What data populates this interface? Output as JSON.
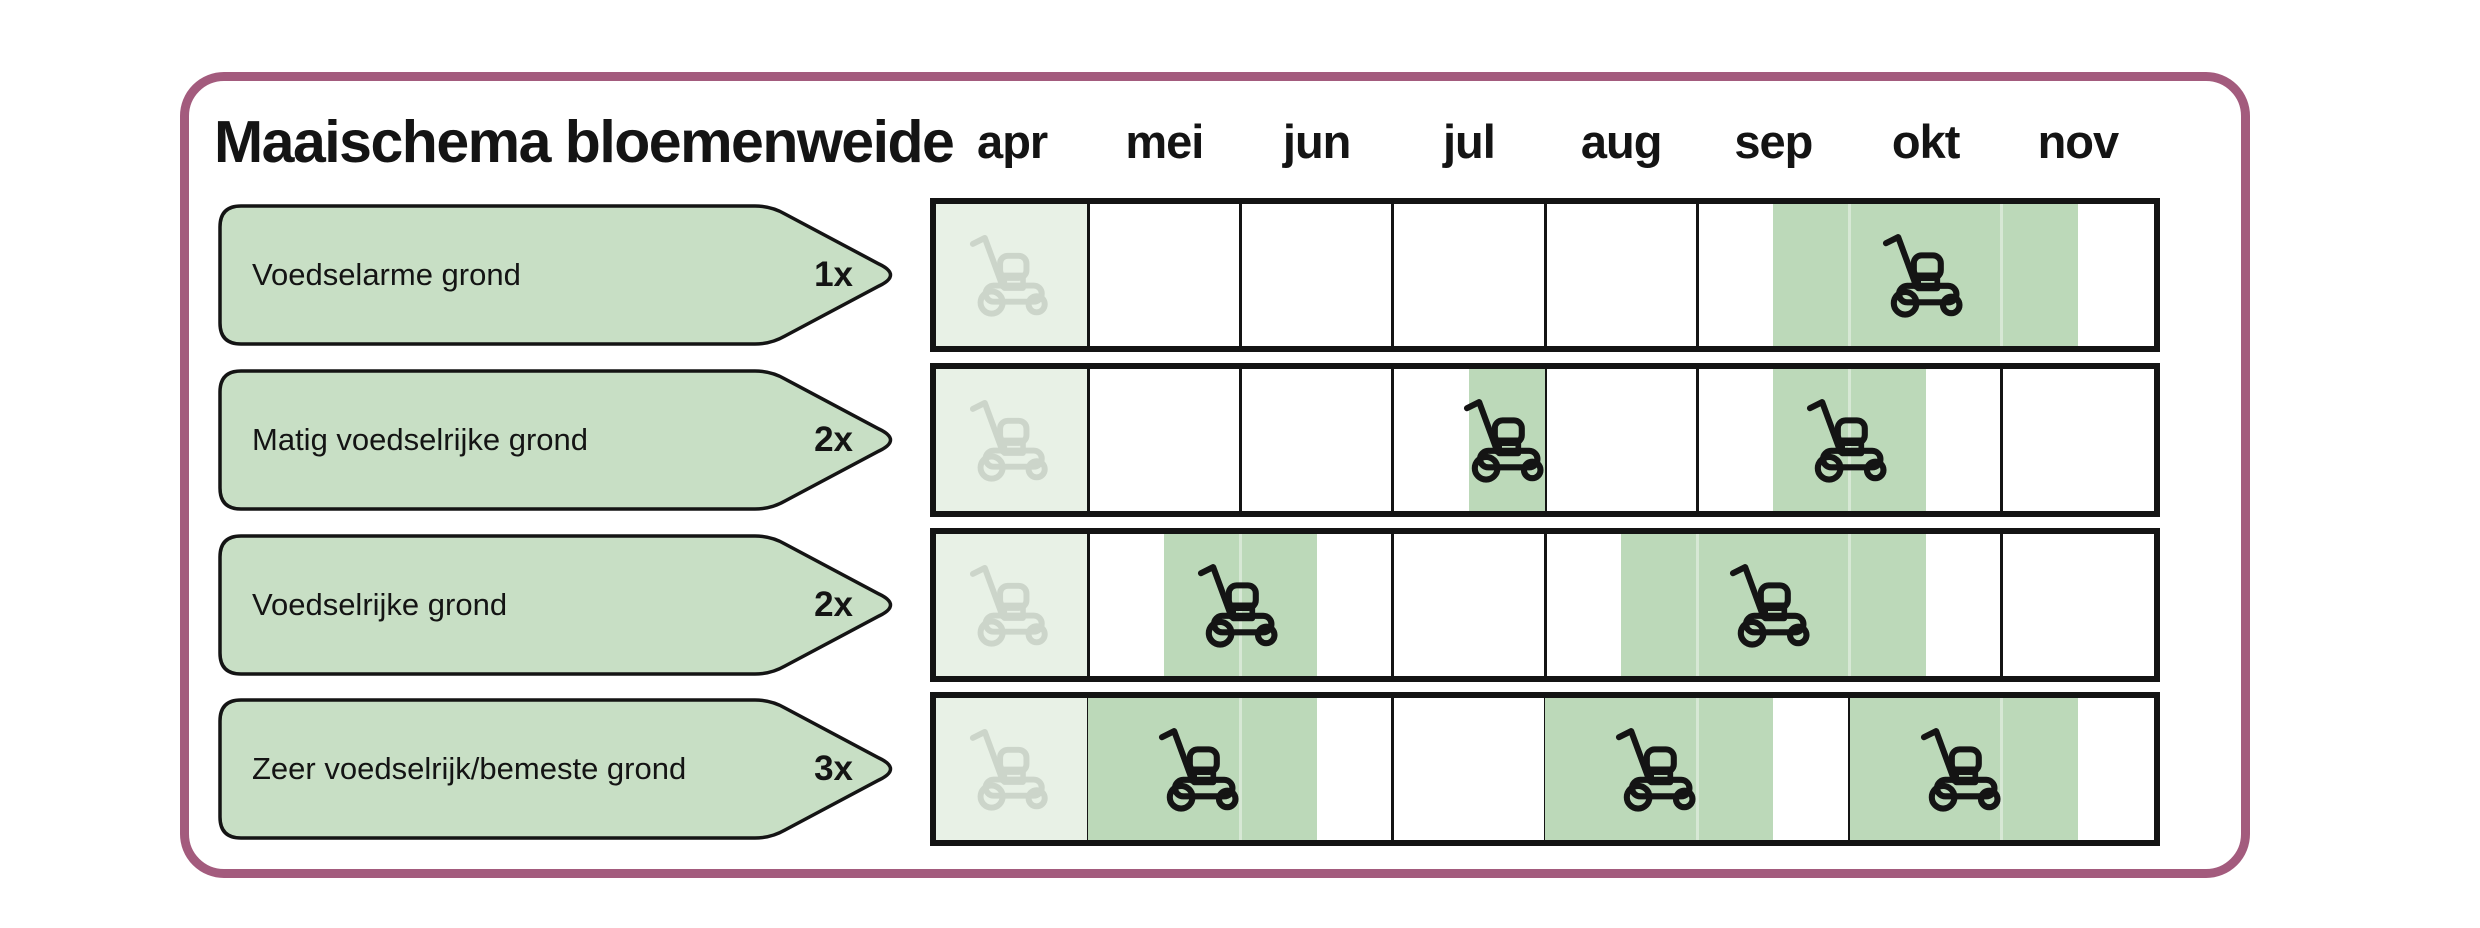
{
  "header": {
    "title": "Maaischema bloemenweide"
  },
  "months": [
    "apr",
    "mei",
    "jun",
    "jul",
    "aug",
    "sep",
    "okt",
    "nov"
  ],
  "palette": {
    "card_border": "#a35b7d",
    "banner_fill": "#c8dfc5",
    "band_fill": "#bcd9b9",
    "april_cell_fill": "#e8f1e6",
    "ghost_icon": "#ccd5ca",
    "icon_black": "#141414",
    "outline_black": "#141414"
  },
  "chart_data": {
    "type": "gantt",
    "title": "Maaischema bloemenweide",
    "x_axis": {
      "unit": "month",
      "ticks": [
        "apr",
        "mei",
        "jun",
        "jul",
        "aug",
        "sep",
        "okt",
        "nov"
      ],
      "note_frac_scale": "fractions count months from start of apr (0.0) to end of nov (8.0); one month = 1.0"
    },
    "rows": [
      {
        "label": "Voedselarme grond",
        "times_per_year": "1x",
        "april_ghost_marker": true,
        "mow_periods": [
          {
            "start_frac": 5.5,
            "end_frac": 7.5,
            "mower_at_frac": 6.5
          }
        ]
      },
      {
        "label": "Matig voedselrijke grond",
        "times_per_year": "2x",
        "april_ghost_marker": true,
        "mow_periods": [
          {
            "start_frac": 3.5,
            "end_frac": 4.0,
            "mower_at_frac": 3.75
          },
          {
            "start_frac": 5.5,
            "end_frac": 6.5,
            "mower_at_frac": 6.0
          }
        ]
      },
      {
        "label": "Voedselrijke grond",
        "times_per_year": "2x",
        "april_ghost_marker": true,
        "mow_periods": [
          {
            "start_frac": 1.5,
            "end_frac": 2.5,
            "mower_at_frac": 2.0
          },
          {
            "start_frac": 4.5,
            "end_frac": 6.5,
            "mower_at_frac": 5.5
          }
        ]
      },
      {
        "label": "Zeer voedselrijk/bemeste grond",
        "times_per_year": "3x",
        "april_ghost_marker": true,
        "mow_periods": [
          {
            "start_frac": 1.0,
            "end_frac": 2.5,
            "mower_at_frac": 1.75
          },
          {
            "start_frac": 4.0,
            "end_frac": 5.5,
            "mower_at_frac": 4.75
          },
          {
            "start_frac": 6.0,
            "end_frac": 7.5,
            "mower_at_frac": 6.75
          }
        ]
      }
    ]
  }
}
